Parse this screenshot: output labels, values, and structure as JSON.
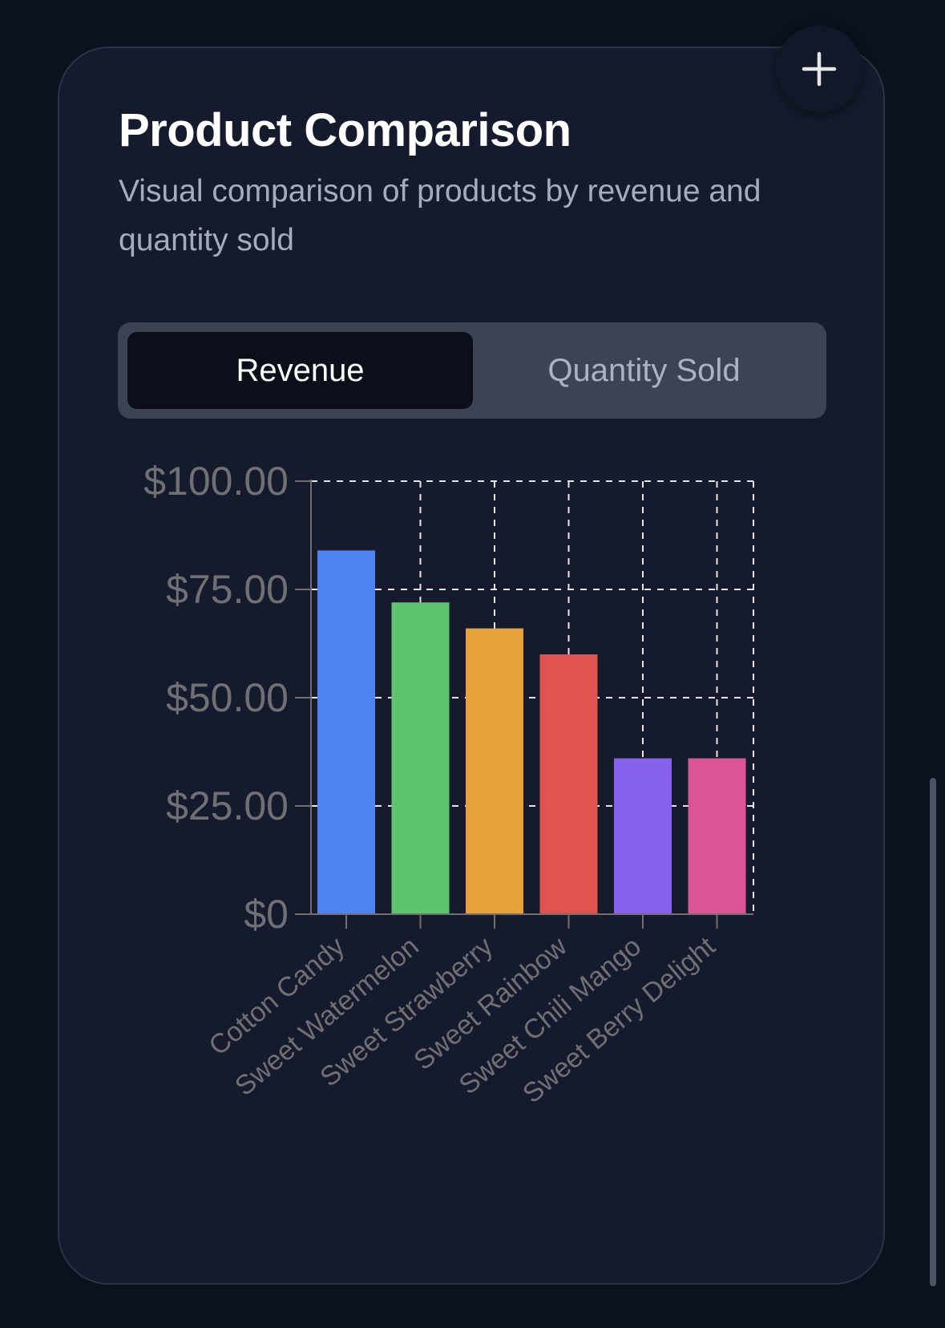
{
  "card": {
    "title": "Product Comparison",
    "subtitle": "Visual comparison of products by revenue and quantity sold",
    "add_icon": "plus-icon"
  },
  "tabs": [
    {
      "label": "Revenue",
      "active": true
    },
    {
      "label": "Quantity Sold",
      "active": false
    }
  ],
  "chart_data": {
    "type": "bar",
    "categories": [
      "Cotton Candy",
      "Sweet Watermelon",
      "Sweet Strawberry",
      "Sweet Rainbow",
      "Sweet Chili Mango",
      "Sweet Berry Delight"
    ],
    "values": [
      84,
      72,
      66,
      60,
      36,
      36
    ],
    "colors": [
      "#4f83ef",
      "#5ec46d",
      "#e8a23b",
      "#e0544f",
      "#8760ed",
      "#db5496"
    ],
    "yticks": [
      "$0",
      "$25.00",
      "$50.00",
      "$75.00",
      "$100.00"
    ],
    "ylim": [
      0,
      100
    ],
    "grid": true
  }
}
